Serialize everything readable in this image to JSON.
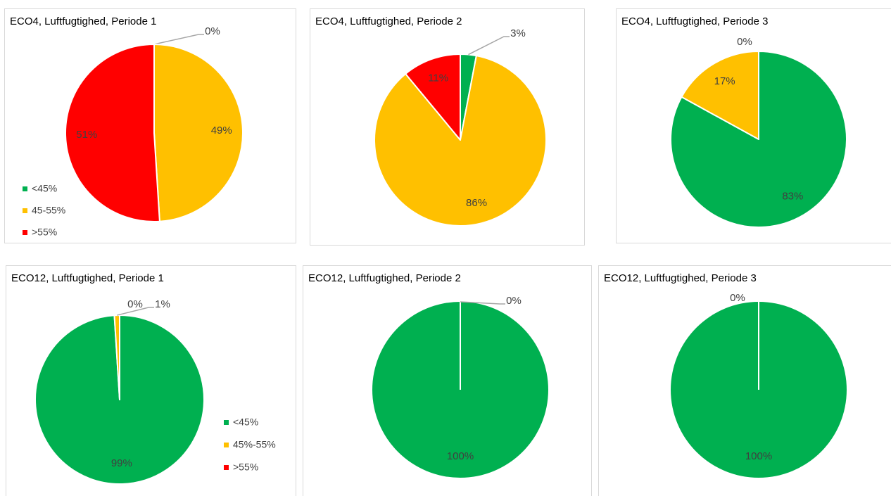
{
  "chart_data": [
    {
      "type": "pie",
      "title": "ECO4, Luftfugtighed, Periode 1",
      "categories": [
        "<45%",
        "45-55%",
        ">55%"
      ],
      "values": [
        0,
        49,
        51
      ],
      "value_labels": [
        "0%",
        "49%",
        "51%"
      ],
      "colors": [
        "#00b050",
        "#ffc000",
        "#ff0000"
      ],
      "legend": "bottom-left"
    },
    {
      "type": "pie",
      "title": "ECO4, Luftfugtighed, Periode 2",
      "values": [
        3,
        86,
        11
      ],
      "value_labels": [
        "3%",
        "86%",
        "11%"
      ],
      "colors": [
        "#00b050",
        "#ffc000",
        "#ff0000"
      ]
    },
    {
      "type": "pie",
      "title": "ECO4, Luftfugtighed, Periode 3",
      "values": [
        83,
        17,
        0
      ],
      "value_labels": [
        "83%",
        "17%",
        "0%"
      ],
      "colors": [
        "#00b050",
        "#ffc000",
        "#ff0000"
      ]
    },
    {
      "type": "pie",
      "title": "ECO12, Luftfugtighed, Periode 1",
      "categories": [
        "<45%",
        "45%-55%",
        ">55%"
      ],
      "values": [
        99,
        1,
        0
      ],
      "value_labels": [
        "99%",
        "1%",
        "0%"
      ],
      "colors": [
        "#00b050",
        "#ffc000",
        "#ff0000"
      ],
      "legend": "right"
    },
    {
      "type": "pie",
      "title": "ECO12, Luftfugtighed, Periode 2",
      "values": [
        100,
        0
      ],
      "value_labels": [
        "100%",
        "0%"
      ],
      "colors": [
        "#00b050",
        "#ffc000"
      ]
    },
    {
      "type": "pie",
      "title": "ECO12, Luftfugtighed, Periode 3",
      "values": [
        100,
        0
      ],
      "value_labels": [
        "100%",
        "0%"
      ],
      "colors": [
        "#00b050",
        "#ffc000"
      ]
    }
  ]
}
